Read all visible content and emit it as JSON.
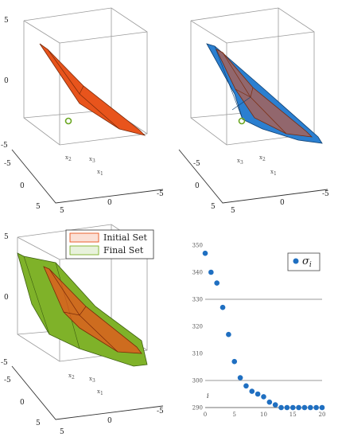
{
  "panels": [
    {
      "type": "3d-polytope",
      "z_ticks": [
        "5",
        "0",
        "-5"
      ],
      "x_ticks": [
        "5",
        "0",
        "-5"
      ],
      "y_ticks": [
        "-5",
        "0",
        "5"
      ],
      "labels": [
        "x",
        "x",
        "x"
      ],
      "label_subs": [
        "2",
        "3",
        "1"
      ],
      "sets": [
        "initial"
      ],
      "target_marker": true,
      "colors": {
        "initial": "#e8541c",
        "target": "#6aa621"
      }
    },
    {
      "type": "3d-polytope",
      "z_ticks": [
        "5",
        "0",
        "-5"
      ],
      "x_ticks": [
        "5",
        "0",
        "-5"
      ],
      "y_ticks": [
        "-5",
        "0",
        "5"
      ],
      "labels": [
        "x",
        "x",
        "x"
      ],
      "label_subs": [
        "3",
        "2",
        "1"
      ],
      "sets": [
        "blue",
        "initial"
      ],
      "target_marker": true,
      "colors": {
        "initial": "#e8541c",
        "blue": "#2b7fd0"
      }
    },
    {
      "type": "3d-polytope",
      "z_ticks": [
        "5",
        "0",
        "-5"
      ],
      "x_ticks": [
        "5",
        "0",
        "-5"
      ],
      "y_ticks": [
        "-5",
        "0",
        "5"
      ],
      "labels": [
        "x",
        "x",
        "x"
      ],
      "label_subs": [
        "2",
        "3",
        "1"
      ],
      "sets": [
        "final",
        "initial"
      ],
      "colors": {
        "initial": "#e8541c",
        "final": "#7fb229"
      },
      "legend": [
        "Initial Set",
        "Final Set"
      ]
    }
  ],
  "chart_data": {
    "type": "scatter",
    "x": [
      0,
      1,
      2,
      3,
      4,
      5,
      6,
      7,
      8,
      9,
      10,
      11,
      12,
      13,
      14,
      15,
      16,
      17,
      18,
      19,
      20
    ],
    "y": [
      347,
      340,
      336,
      327,
      317,
      307,
      301,
      298,
      296,
      295,
      294,
      292,
      291,
      290,
      290,
      290,
      290,
      290,
      290,
      290,
      290
    ],
    "series_name": "σ",
    "series_name_sub": "i",
    "xlabel": "i",
    "ylabel": "",
    "xlim": [
      0,
      20
    ],
    "ylim": [
      290,
      350
    ],
    "x_ticks": [
      "0",
      "5",
      "10",
      "15",
      "20"
    ],
    "y_ticks": [
      "290",
      "300",
      "310",
      "320",
      "330",
      "340",
      "350"
    ],
    "grid_lines_at": [
      300,
      330
    ],
    "legend_position": "top-right",
    "color": "#1f6fc1"
  }
}
